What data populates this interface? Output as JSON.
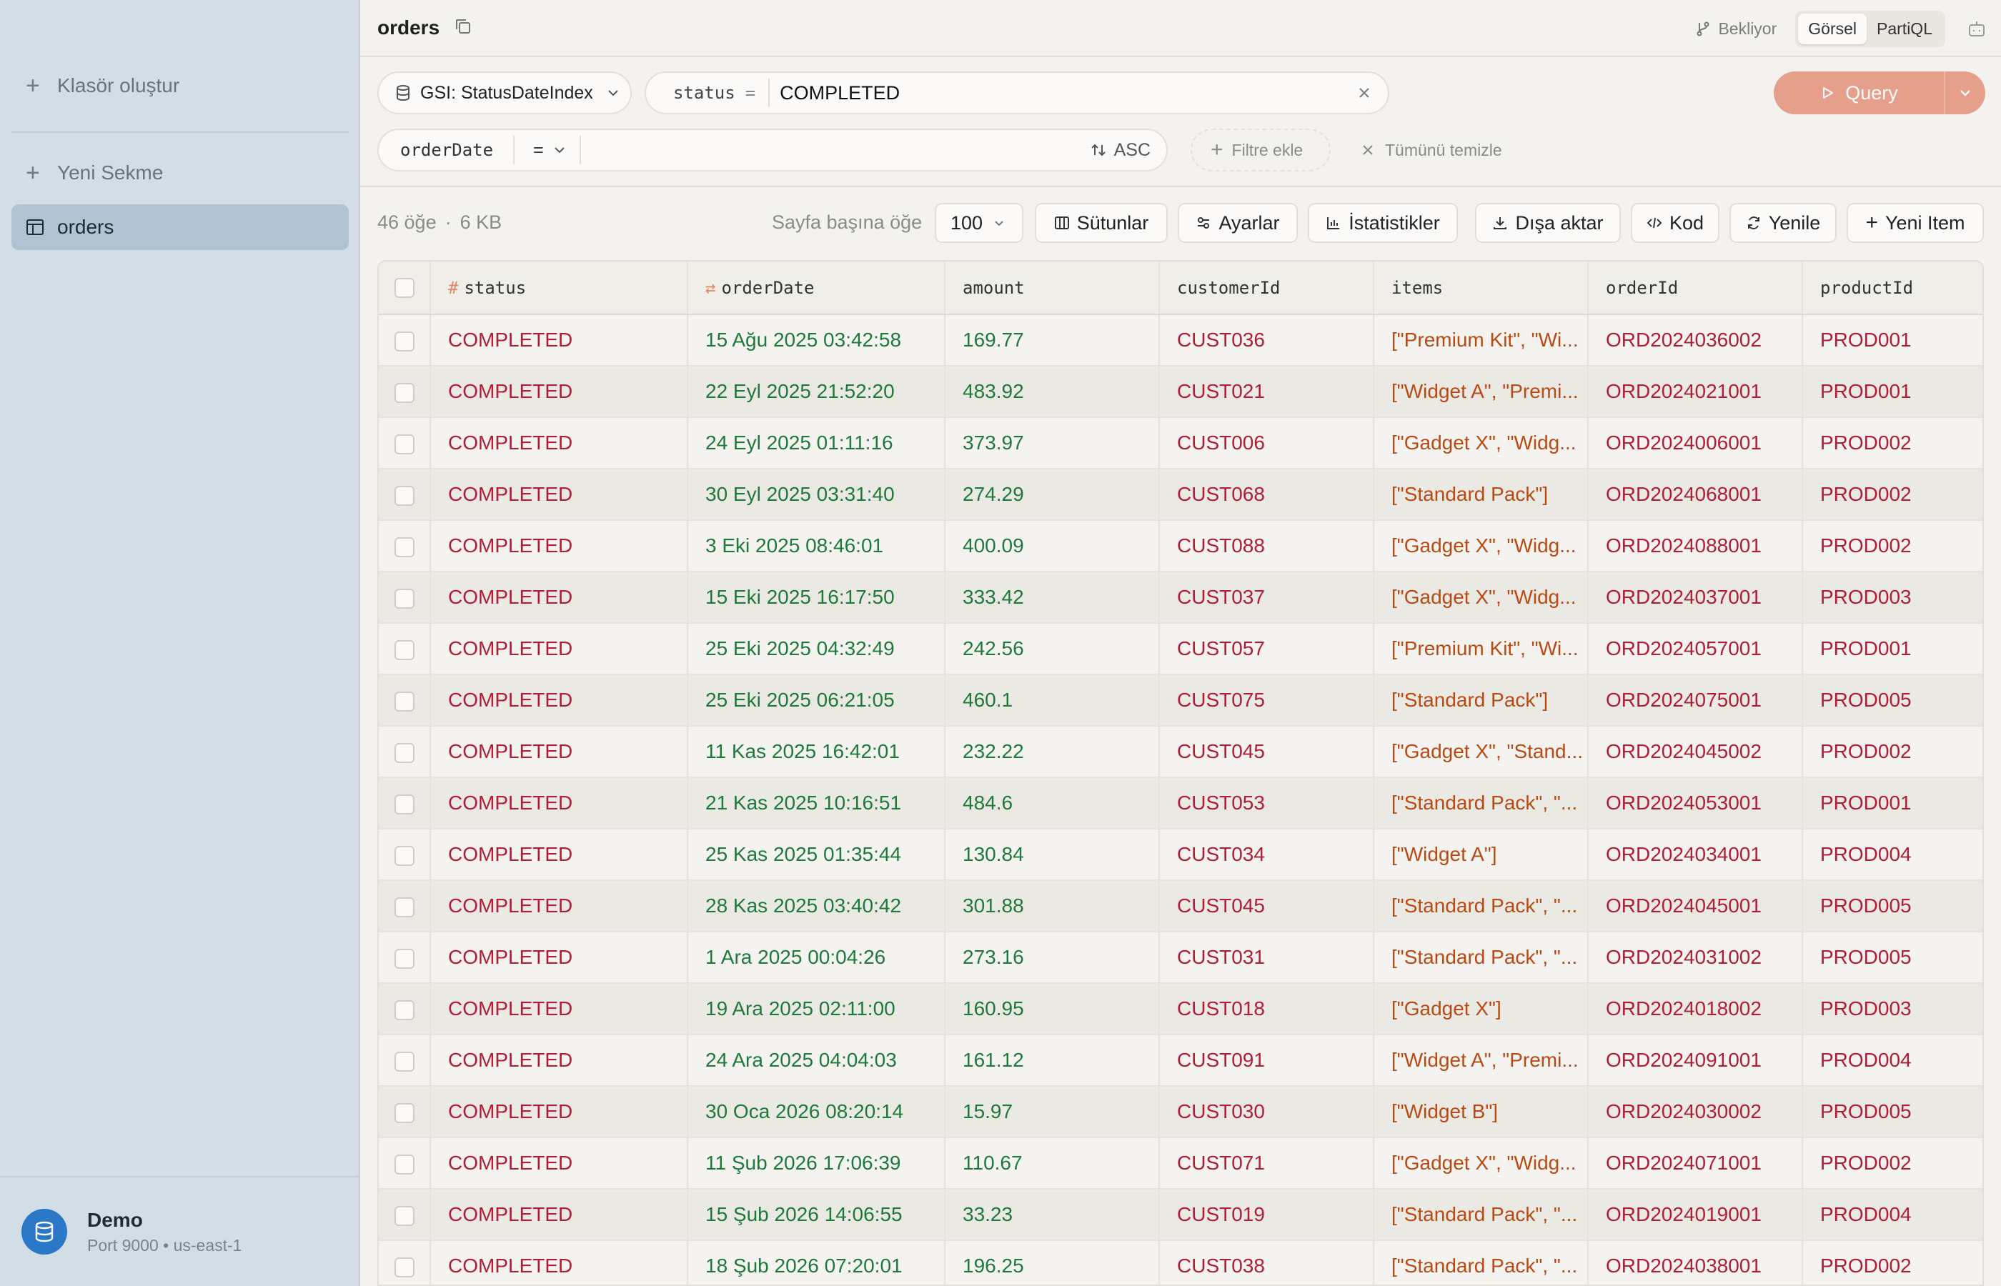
{
  "sidebar": {
    "create_folder": "Klasör oluştur",
    "new_tab": "Yeni Sekme",
    "tables": [
      {
        "label": "orders"
      }
    ],
    "connection": {
      "name": "Demo",
      "details": "Port 9000 • us-east-1"
    }
  },
  "topbar": {
    "title": "orders",
    "pending": "Bekliyor",
    "modes": [
      "Görsel",
      "PartiQL"
    ],
    "active_mode": "Görsel"
  },
  "query": {
    "index": "GSI: StatusDateIndex",
    "partition_key": "status",
    "partition_op": "=",
    "partition_value": "COMPLETED",
    "run_label": "Query",
    "sort_key": "orderDate",
    "sort_op": "=",
    "sort_dir": "ASC",
    "add_filter": "Filtre ekle",
    "clear_all": "Tümünü temizle"
  },
  "toolbar": {
    "count": "46 öğe",
    "size": "6 KB",
    "per_page_label": "Sayfa başına öğe",
    "per_page_value": "100",
    "columns": "Sütunlar",
    "settings": "Ayarlar",
    "stats": "İstatistikler",
    "export": "Dışa aktar",
    "code": "Kod",
    "refresh": "Yenile",
    "new_item": "Yeni Item"
  },
  "table": {
    "headers": [
      "status",
      "orderDate",
      "amount",
      "customerId",
      "items",
      "orderId",
      "productId"
    ],
    "rows": [
      [
        "COMPLETED",
        "15 Ağu 2025 03:42:58",
        "169.77",
        "CUST036",
        "[\"Premium Kit\", \"Wi...",
        "ORD2024036002",
        "PROD001"
      ],
      [
        "COMPLETED",
        "22 Eyl 2025 21:52:20",
        "483.92",
        "CUST021",
        "[\"Widget A\", \"Premi...",
        "ORD2024021001",
        "PROD001"
      ],
      [
        "COMPLETED",
        "24 Eyl 2025 01:11:16",
        "373.97",
        "CUST006",
        "[\"Gadget X\", \"Widg...",
        "ORD2024006001",
        "PROD002"
      ],
      [
        "COMPLETED",
        "30 Eyl 2025 03:31:40",
        "274.29",
        "CUST068",
        "[\"Standard Pack\"]",
        "ORD2024068001",
        "PROD002"
      ],
      [
        "COMPLETED",
        "3 Eki 2025 08:46:01",
        "400.09",
        "CUST088",
        "[\"Gadget X\", \"Widg...",
        "ORD2024088001",
        "PROD002"
      ],
      [
        "COMPLETED",
        "15 Eki 2025 16:17:50",
        "333.42",
        "CUST037",
        "[\"Gadget X\", \"Widg...",
        "ORD2024037001",
        "PROD003"
      ],
      [
        "COMPLETED",
        "25 Eki 2025 04:32:49",
        "242.56",
        "CUST057",
        "[\"Premium Kit\", \"Wi...",
        "ORD2024057001",
        "PROD001"
      ],
      [
        "COMPLETED",
        "25 Eki 2025 06:21:05",
        "460.1",
        "CUST075",
        "[\"Standard Pack\"]",
        "ORD2024075001",
        "PROD005"
      ],
      [
        "COMPLETED",
        "11 Kas 2025 16:42:01",
        "232.22",
        "CUST045",
        "[\"Gadget X\", \"Stand...",
        "ORD2024045002",
        "PROD002"
      ],
      [
        "COMPLETED",
        "21 Kas 2025 10:16:51",
        "484.6",
        "CUST053",
        "[\"Standard Pack\", \"...",
        "ORD2024053001",
        "PROD001"
      ],
      [
        "COMPLETED",
        "25 Kas 2025 01:35:44",
        "130.84",
        "CUST034",
        "[\"Widget A\"]",
        "ORD2024034001",
        "PROD004"
      ],
      [
        "COMPLETED",
        "28 Kas 2025 03:40:42",
        "301.88",
        "CUST045",
        "[\"Standard Pack\", \"...",
        "ORD2024045001",
        "PROD005"
      ],
      [
        "COMPLETED",
        "1 Ara 2025 00:04:26",
        "273.16",
        "CUST031",
        "[\"Standard Pack\", \"...",
        "ORD2024031002",
        "PROD005"
      ],
      [
        "COMPLETED",
        "19 Ara 2025 02:11:00",
        "160.95",
        "CUST018",
        "[\"Gadget X\"]",
        "ORD2024018002",
        "PROD003"
      ],
      [
        "COMPLETED",
        "24 Ara 2025 04:04:03",
        "161.12",
        "CUST091",
        "[\"Widget A\", \"Premi...",
        "ORD2024091001",
        "PROD004"
      ],
      [
        "COMPLETED",
        "30 Oca 2026 08:20:14",
        "15.97",
        "CUST030",
        "[\"Widget B\"]",
        "ORD2024030002",
        "PROD005"
      ],
      [
        "COMPLETED",
        "11 Şub 2026 17:06:39",
        "110.67",
        "CUST071",
        "[\"Gadget X\", \"Widg...",
        "ORD2024071001",
        "PROD002"
      ],
      [
        "COMPLETED",
        "15 Şub 2026 14:06:55",
        "33.23",
        "CUST019",
        "[\"Standard Pack\", \"...",
        "ORD2024019001",
        "PROD004"
      ],
      [
        "COMPLETED",
        "18 Şub 2026 07:20:01",
        "196.25",
        "CUST038",
        "[\"Standard Pack\", \"...",
        "ORD2024038001",
        "PROD002"
      ]
    ]
  },
  "colors": {
    "accent": "#e69f8a",
    "string_value": "#b01d36",
    "number_value": "#1e7a3a",
    "list_value": "#b84a14",
    "sidebar_bg": "#d3dde5"
  }
}
